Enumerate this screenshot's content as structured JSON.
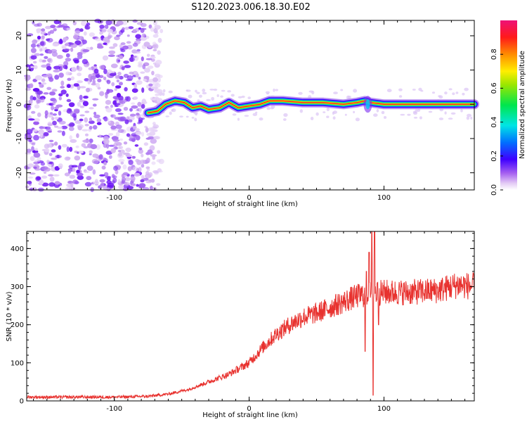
{
  "title": "S120.2023.006.18.30.E02",
  "chart_data": [
    {
      "type": "heatmap",
      "xlabel": "Height of straight line (km)",
      "ylabel": "Frequency (Hz)",
      "xlim": [
        -165,
        167
      ],
      "ylim": [
        -25,
        24.5
      ],
      "xticks": [
        -100,
        0,
        100
      ],
      "yticks": [
        -20,
        -10,
        0,
        10,
        20
      ],
      "colorbar": {
        "label": "Normalized spectral amplitude",
        "ticks": [
          0.0,
          0.2,
          0.4,
          0.6,
          0.8
        ],
        "range": [
          0,
          1
        ]
      },
      "noise_region_x": [
        -165,
        -65
      ],
      "ridge": [
        {
          "x": -75,
          "f": -2.5
        },
        {
          "x": -68,
          "f": -2
        },
        {
          "x": -62,
          "f": 0
        },
        {
          "x": -55,
          "f": 1
        },
        {
          "x": -48,
          "f": 0.5
        },
        {
          "x": -42,
          "f": -1
        },
        {
          "x": -36,
          "f": -0.5
        },
        {
          "x": -30,
          "f": -1.5
        },
        {
          "x": -22,
          "f": -1
        },
        {
          "x": -15,
          "f": 0.5
        },
        {
          "x": -8,
          "f": -1
        },
        {
          "x": 0,
          "f": -0.5
        },
        {
          "x": 8,
          "f": 0
        },
        {
          "x": 15,
          "f": 1
        },
        {
          "x": 25,
          "f": 1
        },
        {
          "x": 40,
          "f": 0.5
        },
        {
          "x": 55,
          "f": 0.5
        },
        {
          "x": 70,
          "f": 0
        },
        {
          "x": 80,
          "f": 0.5
        },
        {
          "x": 86,
          "f": 1
        },
        {
          "x": 90,
          "f": 0.5
        },
        {
          "x": 100,
          "f": 0
        },
        {
          "x": 130,
          "f": 0
        },
        {
          "x": 167,
          "f": 0
        }
      ]
    },
    {
      "type": "line",
      "xlabel": "Height of straight line (km)",
      "ylabel": "SNR (10 * v/v)",
      "xlim": [
        -165,
        167
      ],
      "ylim": [
        0,
        445
      ],
      "xticks": [
        -100,
        0,
        100
      ],
      "yticks": [
        0,
        100,
        200,
        300,
        400
      ],
      "color": "#e8322f",
      "trend": [
        {
          "x": -165,
          "y": 10
        },
        {
          "x": -100,
          "y": 10
        },
        {
          "x": -75,
          "y": 12
        },
        {
          "x": -60,
          "y": 18
        },
        {
          "x": -45,
          "y": 30
        },
        {
          "x": -30,
          "y": 50
        },
        {
          "x": -15,
          "y": 70
        },
        {
          "x": 0,
          "y": 100
        },
        {
          "x": 10,
          "y": 140
        },
        {
          "x": 20,
          "y": 175
        },
        {
          "x": 30,
          "y": 200
        },
        {
          "x": 40,
          "y": 220
        },
        {
          "x": 50,
          "y": 230
        },
        {
          "x": 60,
          "y": 245
        },
        {
          "x": 70,
          "y": 260
        },
        {
          "x": 80,
          "y": 275
        },
        {
          "x": 88,
          "y": 280
        },
        {
          "x": 100,
          "y": 285
        },
        {
          "x": 120,
          "y": 285
        },
        {
          "x": 140,
          "y": 290
        },
        {
          "x": 155,
          "y": 305
        },
        {
          "x": 167,
          "y": 300
        }
      ],
      "spikes": [
        {
          "x": 87,
          "y": 340
        },
        {
          "x": 89,
          "y": 390
        },
        {
          "x": 91,
          "y": 445
        },
        {
          "x": 92,
          "y": 15
        },
        {
          "x": 93,
          "y": 445
        },
        {
          "x": 95,
          "y": 310
        },
        {
          "x": 86,
          "y": 130
        },
        {
          "x": 96,
          "y": 200
        }
      ]
    }
  ]
}
